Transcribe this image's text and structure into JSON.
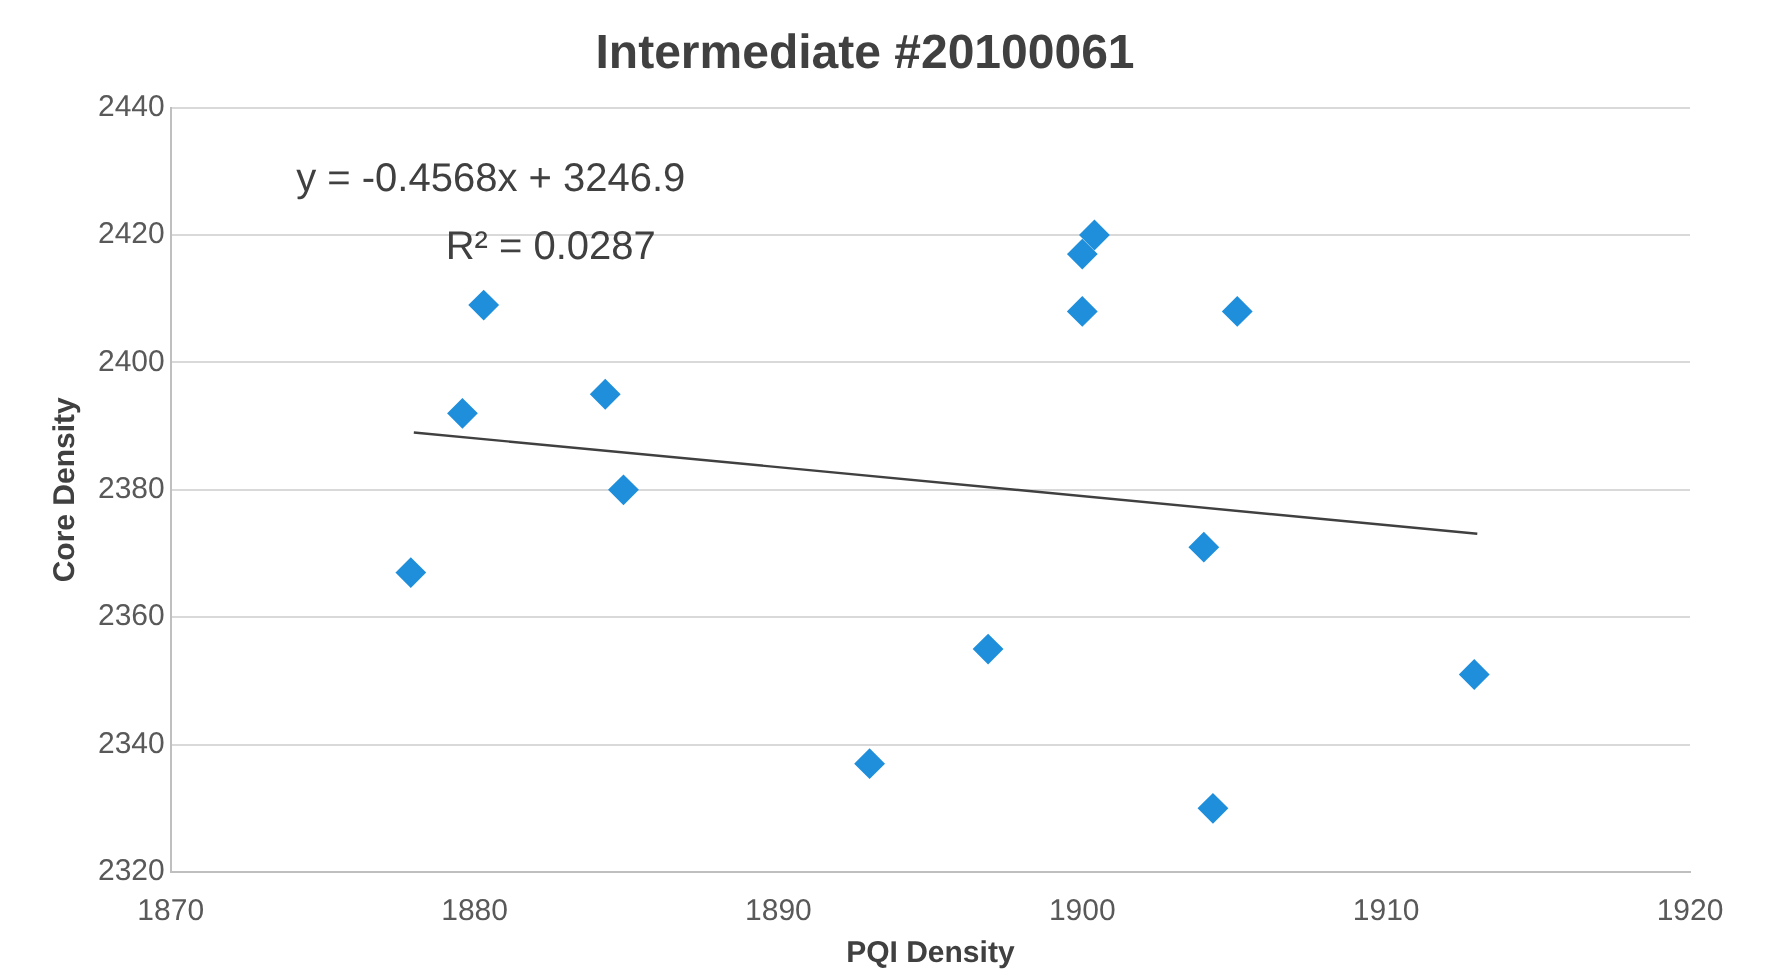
{
  "chart_data": {
    "type": "scatter",
    "title": "Intermediate #20100061",
    "xlabel": "PQI Density",
    "ylabel": "Core Density",
    "x": [
      1877.9,
      1879.6,
      1880.3,
      1884.3,
      1884.9,
      1893.0,
      1896.9,
      1900.0,
      1900.0,
      1900.4,
      1905.1,
      1904.0,
      1904.3,
      1912.9
    ],
    "series": [
      {
        "color": "#1f8fdb",
        "values": [
          2367,
          2392,
          2409,
          2395,
          2380,
          2337,
          2355,
          2408,
          2417,
          2420,
          2408,
          2371,
          2330,
          2351
        ],
        "marker": "diamond"
      },
      {
        "type": "line",
        "color": "#404040",
        "x": [
          1878,
          1913
        ],
        "values": [
          2389.0,
          2373.1
        ],
        "marker": "none"
      }
    ],
    "xlim": [
      1870,
      1920
    ],
    "xticks": [
      1870,
      1880,
      1890,
      1900,
      1910,
      1920
    ],
    "ylim": [
      2320,
      2440
    ],
    "yticks": [
      2320,
      2340,
      2360,
      2380,
      2400,
      2420,
      2440
    ],
    "grid": "y",
    "legend": false,
    "annotations": [
      "y = -0.4568x + 3246.9",
      "R² = 0.0287"
    ]
  }
}
